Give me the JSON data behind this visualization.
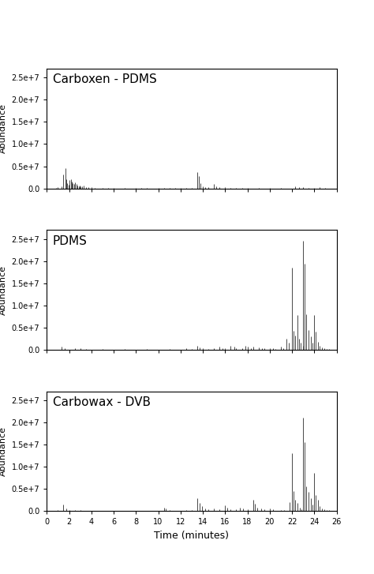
{
  "panels": [
    {
      "label": "Carboxen - PDMS",
      "peaks": [
        [
          0.8,
          150000
        ],
        [
          1.0,
          200000
        ],
        [
          1.3,
          400000
        ],
        [
          1.5,
          3200000
        ],
        [
          1.65,
          4600000
        ],
        [
          1.75,
          2000000
        ],
        [
          1.85,
          1200000
        ],
        [
          1.95,
          800000
        ],
        [
          2.05,
          1800000
        ],
        [
          2.15,
          2000000
        ],
        [
          2.25,
          1500000
        ],
        [
          2.35,
          1200000
        ],
        [
          2.45,
          900000
        ],
        [
          2.55,
          1300000
        ],
        [
          2.65,
          900000
        ],
        [
          2.75,
          700000
        ],
        [
          2.85,
          500000
        ],
        [
          2.95,
          600000
        ],
        [
          3.05,
          500000
        ],
        [
          3.15,
          400000
        ],
        [
          3.3,
          600000
        ],
        [
          3.5,
          300000
        ],
        [
          3.7,
          250000
        ],
        [
          4.0,
          200000
        ],
        [
          4.3,
          150000
        ],
        [
          5.0,
          100000
        ],
        [
          5.5,
          120000
        ],
        [
          6.0,
          100000
        ],
        [
          7.0,
          80000
        ],
        [
          8.0,
          100000
        ],
        [
          8.5,
          150000
        ],
        [
          9.0,
          100000
        ],
        [
          10.0,
          150000
        ],
        [
          10.5,
          120000
        ],
        [
          11.0,
          100000
        ],
        [
          11.5,
          150000
        ],
        [
          12.0,
          120000
        ],
        [
          12.5,
          100000
        ],
        [
          13.0,
          150000
        ],
        [
          13.5,
          3700000
        ],
        [
          13.65,
          2800000
        ],
        [
          13.8,
          1200000
        ],
        [
          14.0,
          500000
        ],
        [
          14.2,
          300000
        ],
        [
          14.5,
          200000
        ],
        [
          15.0,
          1000000
        ],
        [
          15.2,
          500000
        ],
        [
          15.5,
          300000
        ],
        [
          16.0,
          200000
        ],
        [
          16.5,
          150000
        ],
        [
          17.0,
          100000
        ],
        [
          17.5,
          100000
        ],
        [
          18.0,
          80000
        ],
        [
          19.0,
          80000
        ],
        [
          20.0,
          80000
        ],
        [
          21.0,
          80000
        ],
        [
          22.3,
          400000
        ],
        [
          22.6,
          300000
        ],
        [
          23.0,
          200000
        ],
        [
          23.5,
          150000
        ],
        [
          24.0,
          100000
        ],
        [
          24.5,
          200000
        ],
        [
          25.0,
          150000
        ]
      ]
    },
    {
      "label": "PDMS",
      "peaks": [
        [
          1.3,
          600000
        ],
        [
          1.6,
          300000
        ],
        [
          2.5,
          400000
        ],
        [
          3.0,
          300000
        ],
        [
          3.5,
          150000
        ],
        [
          5.0,
          100000
        ],
        [
          7.0,
          80000
        ],
        [
          9.0,
          80000
        ],
        [
          11.0,
          100000
        ],
        [
          12.5,
          300000
        ],
        [
          13.0,
          200000
        ],
        [
          13.5,
          800000
        ],
        [
          13.7,
          500000
        ],
        [
          14.0,
          300000
        ],
        [
          14.5,
          200000
        ],
        [
          15.0,
          300000
        ],
        [
          15.5,
          600000
        ],
        [
          15.8,
          400000
        ],
        [
          16.0,
          300000
        ],
        [
          16.5,
          900000
        ],
        [
          16.8,
          600000
        ],
        [
          17.0,
          400000
        ],
        [
          17.5,
          400000
        ],
        [
          17.8,
          800000
        ],
        [
          18.0,
          600000
        ],
        [
          18.3,
          400000
        ],
        [
          18.5,
          600000
        ],
        [
          19.0,
          500000
        ],
        [
          19.3,
          400000
        ],
        [
          19.5,
          300000
        ],
        [
          20.0,
          400000
        ],
        [
          20.3,
          300000
        ],
        [
          20.5,
          200000
        ],
        [
          21.0,
          600000
        ],
        [
          21.2,
          400000
        ],
        [
          21.5,
          2500000
        ],
        [
          21.7,
          1500000
        ],
        [
          22.0,
          18500000
        ],
        [
          22.15,
          4200000
        ],
        [
          22.3,
          3200000
        ],
        [
          22.5,
          7800000
        ],
        [
          22.65,
          2500000
        ],
        [
          22.8,
          1500000
        ],
        [
          22.95,
          800000
        ],
        [
          23.0,
          24500000
        ],
        [
          23.15,
          19500000
        ],
        [
          23.3,
          8000000
        ],
        [
          23.5,
          4500000
        ],
        [
          23.7,
          3000000
        ],
        [
          23.85,
          1500000
        ],
        [
          24.0,
          7800000
        ],
        [
          24.15,
          4000000
        ],
        [
          24.3,
          1800000
        ],
        [
          24.5,
          800000
        ],
        [
          24.7,
          500000
        ],
        [
          24.9,
          300000
        ],
        [
          25.1,
          200000
        ],
        [
          25.3,
          150000
        ]
      ]
    },
    {
      "label": "Carbowax - DVB",
      "peaks": [
        [
          1.0,
          200000
        ],
        [
          1.5,
          1500000
        ],
        [
          1.75,
          600000
        ],
        [
          2.0,
          200000
        ],
        [
          2.5,
          150000
        ],
        [
          3.0,
          150000
        ],
        [
          5.0,
          80000
        ],
        [
          7.0,
          80000
        ],
        [
          9.0,
          80000
        ],
        [
          10.5,
          800000
        ],
        [
          10.7,
          500000
        ],
        [
          11.0,
          200000
        ],
        [
          12.5,
          150000
        ],
        [
          13.0,
          150000
        ],
        [
          13.5,
          2800000
        ],
        [
          13.7,
          1800000
        ],
        [
          13.9,
          1000000
        ],
        [
          14.2,
          600000
        ],
        [
          14.5,
          400000
        ],
        [
          15.0,
          500000
        ],
        [
          15.5,
          300000
        ],
        [
          16.0,
          1200000
        ],
        [
          16.2,
          800000
        ],
        [
          16.5,
          400000
        ],
        [
          17.0,
          300000
        ],
        [
          17.3,
          800000
        ],
        [
          17.6,
          500000
        ],
        [
          18.0,
          350000
        ],
        [
          18.5,
          2500000
        ],
        [
          18.7,
          1600000
        ],
        [
          18.9,
          800000
        ],
        [
          19.2,
          600000
        ],
        [
          19.5,
          400000
        ],
        [
          20.0,
          500000
        ],
        [
          20.3,
          300000
        ],
        [
          21.0,
          200000
        ],
        [
          21.3,
          150000
        ],
        [
          21.8,
          2000000
        ],
        [
          22.0,
          13000000
        ],
        [
          22.15,
          4500000
        ],
        [
          22.3,
          2500000
        ],
        [
          22.5,
          1800000
        ],
        [
          22.7,
          800000
        ],
        [
          22.85,
          400000
        ],
        [
          23.0,
          21000000
        ],
        [
          23.15,
          15500000
        ],
        [
          23.3,
          5500000
        ],
        [
          23.5,
          4200000
        ],
        [
          23.7,
          2800000
        ],
        [
          23.85,
          1500000
        ],
        [
          24.0,
          8500000
        ],
        [
          24.15,
          3500000
        ],
        [
          24.3,
          2500000
        ],
        [
          24.5,
          1000000
        ],
        [
          24.7,
          500000
        ],
        [
          24.9,
          300000
        ],
        [
          25.1,
          150000
        ],
        [
          25.3,
          100000
        ]
      ]
    }
  ],
  "xlabel": "Time (minutes)",
  "ylabel": "Abundance",
  "xlim": [
    0,
    26
  ],
  "ylim": [
    0,
    27000000.0
  ],
  "yticks": [
    0.0,
    5000000.0,
    10000000.0,
    15000000.0,
    20000000.0,
    25000000.0
  ],
  "xticks": [
    0,
    2,
    4,
    6,
    8,
    10,
    12,
    14,
    16,
    18,
    20,
    22,
    24,
    26
  ],
  "line_color": "#000000",
  "line_width": 0.5,
  "label_fontsize": 11,
  "tick_fontsize": 7,
  "ylabel_fontsize": 8,
  "xlabel_fontsize": 9,
  "sigma": 0.025
}
